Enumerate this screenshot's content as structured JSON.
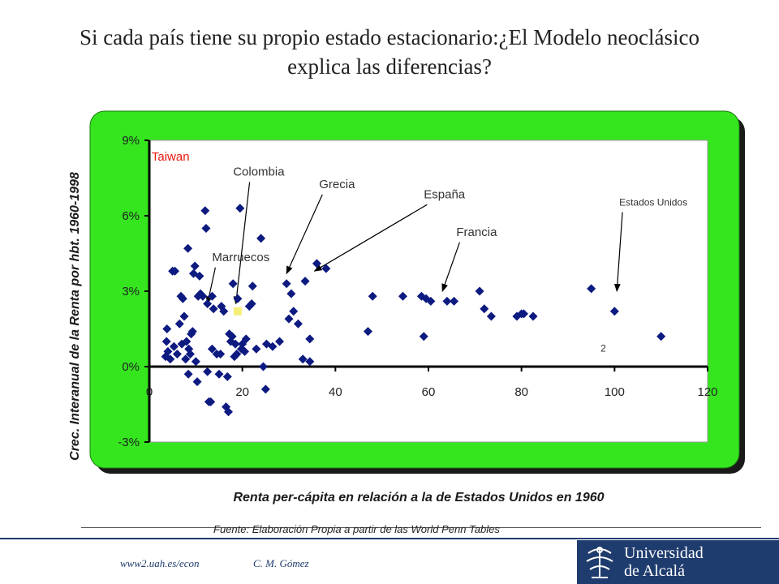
{
  "slide": {
    "title": "Si cada país tiene su propio estado estacionario:¿El Modelo neoclásico explica las diferencias?",
    "source": "Fuente: Elaboración Propia a partir de las World Penn Tables",
    "footer_url": "www2.uah.es/econ",
    "footer_author": "C. M. Gómez",
    "logo_line1": "Universidad",
    "logo_line2": "de Alcalá"
  },
  "colors": {
    "frame_green": "#35e61f",
    "frame_shadow": "#1a1a1a",
    "plot_bg": "#ffffff",
    "marker": "#0d1a80",
    "taiwan_label": "#e8180c",
    "highlight_point": "#f5f07a",
    "logo_bg": "#1f3c6e"
  },
  "chart_data": {
    "type": "scatter",
    "title": "",
    "xlabel": "Renta per-cápita en relación a la de Estados Unidos en 1960",
    "ylabel": "Crec. Interanual de la Renta por hbt. 1960-1998",
    "xlim": [
      0,
      120
    ],
    "ylim": [
      -3,
      9
    ],
    "grid": false,
    "x_ticks": [
      "0",
      "20",
      "40",
      "60",
      "80",
      "100",
      "120"
    ],
    "y_ticks": [
      "-3%",
      "0%",
      "3%",
      "6%",
      "9%"
    ],
    "y_tick_values": [
      -3,
      0,
      3,
      6,
      9
    ],
    "x_tick_values": [
      0,
      20,
      40,
      60,
      80,
      100,
      120
    ],
    "points": [
      [
        3.5,
        0.4
      ],
      [
        3.7,
        1.0
      ],
      [
        3.8,
        1.5
      ],
      [
        4.0,
        0.6
      ],
      [
        4.5,
        0.3
      ],
      [
        5.0,
        3.8
      ],
      [
        5.3,
        0.8
      ],
      [
        5.5,
        3.8
      ],
      [
        6.0,
        0.5
      ],
      [
        6.5,
        1.7
      ],
      [
        6.8,
        2.8
      ],
      [
        7.0,
        0.9
      ],
      [
        7.2,
        2.7
      ],
      [
        7.5,
        2.0
      ],
      [
        7.8,
        0.3
      ],
      [
        8.0,
        1.0
      ],
      [
        8.3,
        4.7
      ],
      [
        8.5,
        0.7
      ],
      [
        8.8,
        0.5
      ],
      [
        8.4,
        -0.3
      ],
      [
        9.0,
        1.3
      ],
      [
        9.3,
        1.4
      ],
      [
        9.5,
        3.7
      ],
      [
        9.8,
        4.0
      ],
      [
        10.0,
        0.2
      ],
      [
        10.3,
        -0.6
      ],
      [
        10.5,
        2.8
      ],
      [
        10.8,
        3.6
      ],
      [
        11.0,
        2.9
      ],
      [
        11.5,
        2.8
      ],
      [
        12.0,
        6.2
      ],
      [
        12.2,
        5.5
      ],
      [
        12.5,
        2.5
      ],
      [
        12.5,
        -0.2
      ],
      [
        12.8,
        -1.4
      ],
      [
        13.2,
        -1.4
      ],
      [
        13.5,
        2.8
      ],
      [
        13.8,
        2.3
      ],
      [
        13.5,
        0.7
      ],
      [
        14.5,
        0.5
      ],
      [
        15.0,
        -0.3
      ],
      [
        15.3,
        0.5
      ],
      [
        15.5,
        2.4
      ],
      [
        16.0,
        2.2
      ],
      [
        16.5,
        -1.6
      ],
      [
        16.8,
        -0.4
      ],
      [
        17.0,
        -1.8
      ],
      [
        17.2,
        1.3
      ],
      [
        17.5,
        1.0
      ],
      [
        17.8,
        1.2
      ],
      [
        18.0,
        3.3
      ],
      [
        18.3,
        0.4
      ],
      [
        18.5,
        0.9
      ],
      [
        18.8,
        0.5
      ],
      [
        19.0,
        2.7
      ],
      [
        19.5,
        6.3
      ],
      [
        19.8,
        0.7
      ],
      [
        20.0,
        0.9
      ],
      [
        20.5,
        0.6
      ],
      [
        20.8,
        1.1
      ],
      [
        21.5,
        2.4
      ],
      [
        22.0,
        2.5
      ],
      [
        22.2,
        3.2
      ],
      [
        23.0,
        0.7
      ],
      [
        24.0,
        5.1
      ],
      [
        24.5,
        0.0
      ],
      [
        25.0,
        -0.9
      ],
      [
        25.2,
        0.9
      ],
      [
        26.5,
        0.8
      ],
      [
        28.0,
        1.0
      ],
      [
        29.5,
        3.3
      ],
      [
        30.0,
        1.9
      ],
      [
        31.0,
        2.2
      ],
      [
        30.5,
        2.9
      ],
      [
        32.0,
        1.7
      ],
      [
        33.5,
        3.4
      ],
      [
        33.0,
        0.3
      ],
      [
        34.5,
        1.1
      ],
      [
        34.5,
        0.2
      ],
      [
        36.0,
        4.1
      ],
      [
        38.0,
        3.9
      ],
      [
        47.0,
        1.4
      ],
      [
        48.0,
        2.8
      ],
      [
        54.5,
        2.8
      ],
      [
        58.5,
        2.8
      ],
      [
        59.0,
        1.2
      ],
      [
        59.5,
        2.7
      ],
      [
        60.5,
        2.6
      ],
      [
        64.0,
        2.6
      ],
      [
        65.5,
        2.6
      ],
      [
        71.0,
        3.0
      ],
      [
        72.0,
        2.3
      ],
      [
        73.5,
        2.0
      ],
      [
        79.0,
        2.0
      ],
      [
        80.0,
        2.1
      ],
      [
        80.5,
        2.1
      ],
      [
        82.5,
        2.0
      ],
      [
        95.0,
        3.1
      ],
      [
        100.0,
        2.2
      ],
      [
        110.0,
        1.2
      ]
    ],
    "highlight_point": [
      19.0,
      2.2
    ],
    "annotations": [
      {
        "text": "Taiwan",
        "style": "red",
        "x": 0.5,
        "y": 8.2,
        "arrow_to": null
      },
      {
        "text": "Colombia",
        "style": "normal",
        "x": 18.0,
        "y": 7.6,
        "arrow_to": [
          18.6,
          2.5
        ]
      },
      {
        "text": "Grecia",
        "style": "normal",
        "x": 36.5,
        "y": 7.1,
        "arrow_to": [
          29.5,
          3.7
        ]
      },
      {
        "text": "España",
        "style": "normal",
        "x": 59.0,
        "y": 6.7,
        "arrow_to": [
          35.5,
          3.8
        ]
      },
      {
        "text": "Francia",
        "style": "normal",
        "x": 66.0,
        "y": 5.2,
        "arrow_to": [
          63.0,
          3.0
        ]
      },
      {
        "text": "Estados Unidos",
        "style": "small",
        "x": 101.0,
        "y": 6.4,
        "arrow_to": [
          100.5,
          3.0
        ]
      },
      {
        "text": "Marruecos",
        "style": "normal",
        "x": 13.5,
        "y": 4.2,
        "arrow_to": [
          12.5,
          2.5
        ]
      },
      {
        "text": "2",
        "style": "small",
        "x": 97.0,
        "y": 0.6,
        "arrow_to": null
      }
    ]
  }
}
